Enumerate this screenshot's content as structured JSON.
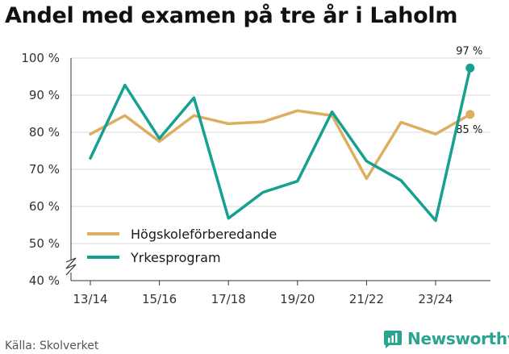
{
  "title": "Andel med examen på tre år i Laholm",
  "source": "Källa: Skolverket",
  "brand": {
    "name": "Newsworthy",
    "icon": "newsworthy-logo-icon"
  },
  "colors": {
    "hogskole": "#dcae60",
    "yrkes": "#16a090",
    "grid": "#d9d9d9"
  },
  "chart_data": {
    "type": "line",
    "x": [
      "13/14",
      "14/15",
      "15/16",
      "16/17",
      "17/18",
      "18/19",
      "19/20",
      "20/21",
      "21/22",
      "22/23",
      "23/24",
      "24/25"
    ],
    "xticks": [
      "13/14",
      "15/16",
      "17/18",
      "19/20",
      "21/22",
      "23/24"
    ],
    "ylim": [
      40,
      100
    ],
    "yticks": [
      "40 %",
      "50 %",
      "60 %",
      "70 %",
      "80 %",
      "90 %",
      "100 %"
    ],
    "yticks_values": [
      40,
      50,
      60,
      70,
      80,
      90,
      100
    ],
    "axis_break": true,
    "grid": true,
    "legend_position": "bottom-left",
    "series": [
      {
        "name": "Högskoleförberedande",
        "color": "#dcae60",
        "values": [
          79.5,
          84.5,
          77.5,
          84.5,
          82.3,
          82.8,
          85.8,
          84.5,
          67.5,
          82.7,
          79.5,
          84.8
        ],
        "end_label": "85 %"
      },
      {
        "name": "Yrkesprogram",
        "color": "#16a090",
        "values": [
          73,
          92.7,
          78.3,
          89.3,
          56.8,
          63.8,
          66.8,
          85.5,
          72.2,
          67,
          56.2,
          97.3
        ],
        "end_label": "97 %"
      }
    ]
  }
}
